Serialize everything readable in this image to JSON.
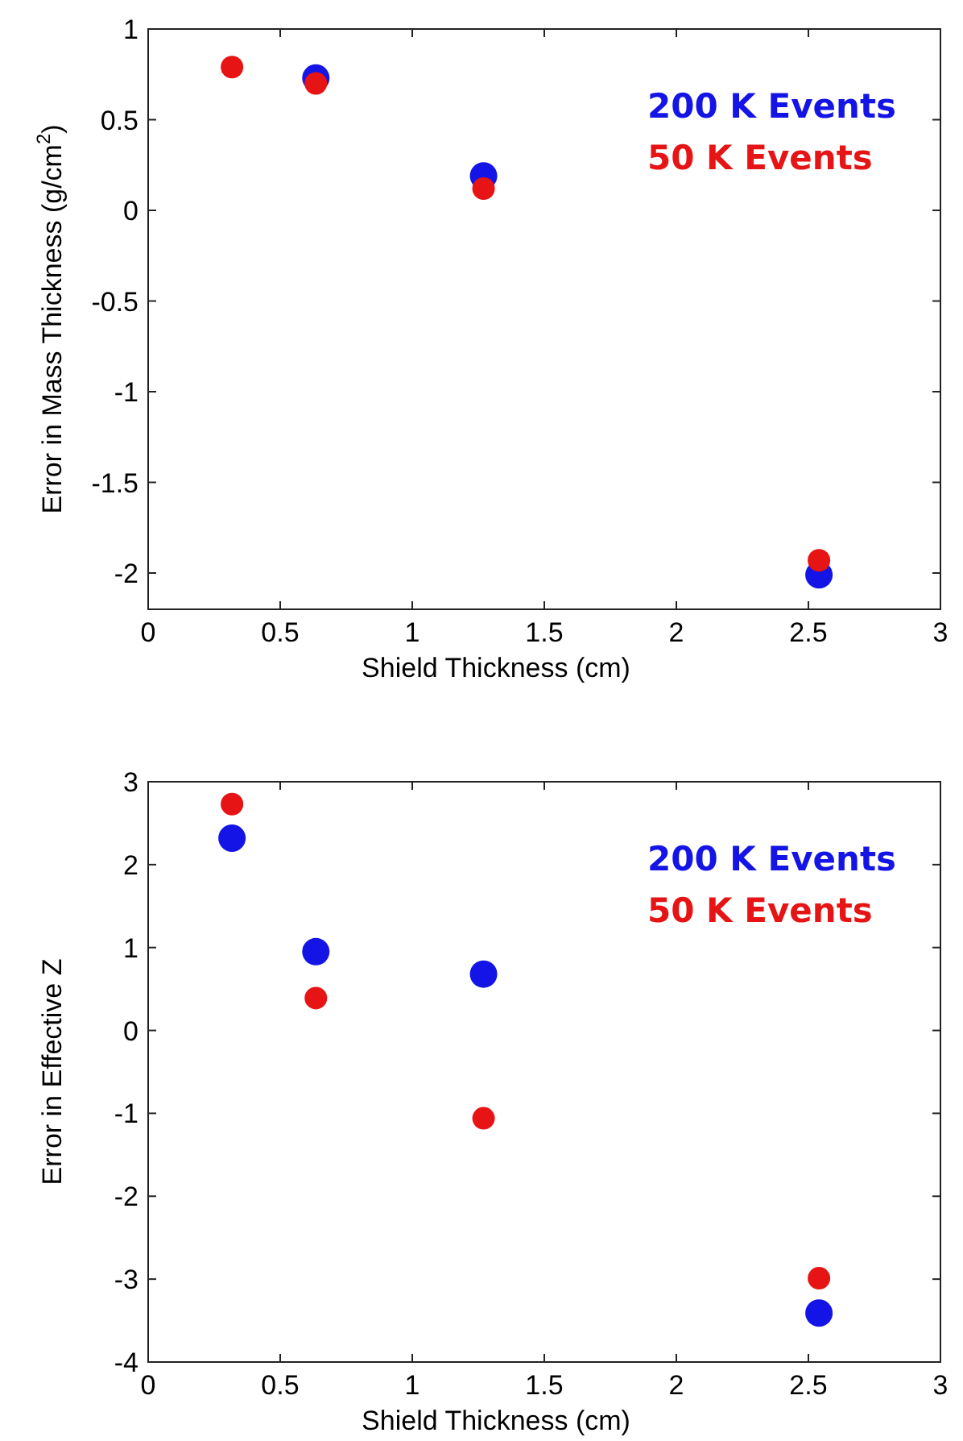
{
  "chart_data": [
    {
      "type": "scatter",
      "ylabel": "Error in Mass Thickness (g/cm$^{2}$)",
      "xlabel": "Shield Thickness (cm)",
      "xlim": [
        0,
        3
      ],
      "xticks": [
        0,
        0.5,
        1,
        1.5,
        2,
        2.5,
        3
      ],
      "ylim": [
        -2.2,
        1
      ],
      "yticks": [
        -2,
        -1.5,
        -1,
        -0.5,
        0,
        0.5,
        1
      ],
      "marker": "circle",
      "legend": "top right",
      "series": [
        {
          "name": "200 K Events",
          "color": "#1414e6",
          "x": [
            0.635,
            1.27,
            2.54
          ],
          "values": [
            0.73,
            0.19,
            -2.01
          ]
        },
        {
          "name": "50 K Events",
          "color": "#e61414",
          "x": [
            0.3175,
            0.635,
            1.27,
            2.54
          ],
          "values": [
            0.79,
            0.7,
            0.12,
            -1.93
          ]
        }
      ]
    },
    {
      "type": "scatter",
      "ylabel": "Error in Effective Z",
      "xlabel": "Shield Thickness (cm)",
      "xlim": [
        0,
        3
      ],
      "xticks": [
        0,
        0.5,
        1,
        1.5,
        2,
        2.5,
        3
      ],
      "ylim": [
        -4,
        3
      ],
      "yticks": [
        -4,
        -3,
        -2,
        -1,
        0,
        1,
        2,
        3
      ],
      "marker": "circle",
      "legend": "top right",
      "series": [
        {
          "name": "200 K Events",
          "color": "#1414e6",
          "x": [
            0.3175,
            0.635,
            1.27,
            2.54
          ],
          "values": [
            2.32,
            0.95,
            0.68,
            -3.41
          ]
        },
        {
          "name": "50 K Events",
          "color": "#e61414",
          "x": [
            0.3175,
            0.635,
            1.27,
            2.54
          ],
          "values": [
            2.73,
            0.39,
            -1.06,
            -2.99
          ]
        }
      ]
    }
  ]
}
